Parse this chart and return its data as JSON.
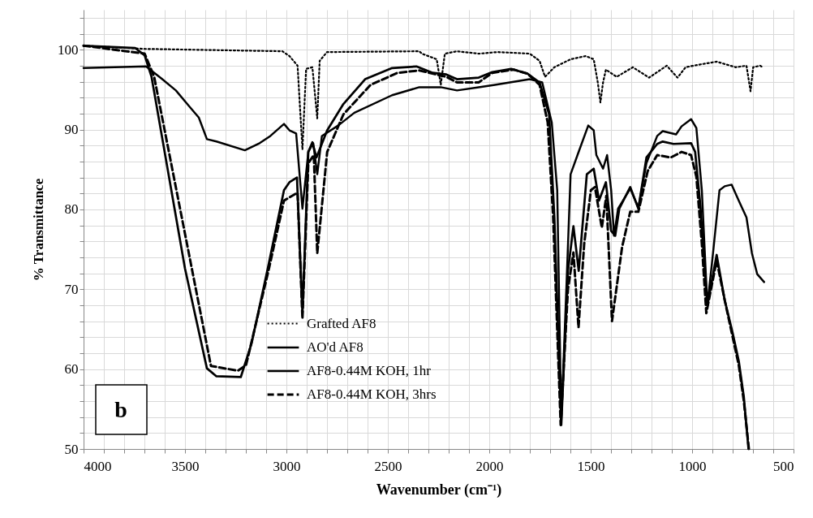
{
  "chart_data": {
    "type": "line",
    "xlabel": "Wavenumber (cm⁻¹)",
    "ylabel": "% Transmittance",
    "annotations": [
      "b"
    ],
    "xlim": [
      4000,
      500
    ],
    "ylim": [
      50,
      105
    ],
    "xticks": [
      4000,
      {
        "value": 3900,
        "label": null
      },
      {
        "value": 3800,
        "label": null
      },
      {
        "value": 3700,
        "label": null
      },
      {
        "value": 3600,
        "label": null
      },
      3500,
      {
        "value": 3400,
        "label": null
      },
      {
        "value": 3300,
        "label": null
      },
      {
        "value": 3200,
        "label": null
      },
      {
        "value": 3100,
        "label": null
      },
      3000,
      {
        "value": 2900,
        "label": null
      },
      {
        "value": 2800,
        "label": null
      },
      {
        "value": 2700,
        "label": null
      },
      {
        "value": 2600,
        "label": null
      },
      2500,
      {
        "value": 2400,
        "label": null
      },
      {
        "value": 2300,
        "label": null
      },
      {
        "value": 2200,
        "label": null
      },
      {
        "value": 2100,
        "label": null
      },
      2000,
      {
        "value": 1900,
        "label": null
      },
      {
        "value": 1800,
        "label": null
      },
      {
        "value": 1700,
        "label": null
      },
      {
        "value": 1600,
        "label": null
      },
      1500,
      {
        "value": 1400,
        "label": null
      },
      {
        "value": 1300,
        "label": null
      },
      {
        "value": 1200,
        "label": null
      },
      {
        "value": 1100,
        "label": null
      },
      1000,
      {
        "value": 900,
        "label": null
      },
      {
        "value": 800,
        "label": null
      },
      {
        "value": 700,
        "label": null
      },
      {
        "value": 600,
        "label": null
      },
      500
    ],
    "yticks": [
      50,
      {
        "value": 52,
        "label": null
      },
      {
        "value": 54,
        "label": null
      },
      {
        "value": 56,
        "label": null
      },
      {
        "value": 58,
        "label": null
      },
      60,
      {
        "value": 62,
        "label": null
      },
      {
        "value": 64,
        "label": null
      },
      {
        "value": 66,
        "label": null
      },
      {
        "value": 68,
        "label": null
      },
      70,
      {
        "value": 72,
        "label": null
      },
      {
        "value": 74,
        "label": null
      },
      {
        "value": 76,
        "label": null
      },
      {
        "value": 78,
        "label": null
      },
      80,
      {
        "value": 82,
        "label": null
      },
      {
        "value": 84,
        "label": null
      },
      {
        "value": 86,
        "label": null
      },
      {
        "value": 88,
        "label": null
      },
      90,
      {
        "value": 92,
        "label": null
      },
      {
        "value": 94,
        "label": null
      },
      {
        "value": 96,
        "label": null
      },
      {
        "value": 98,
        "label": null
      },
      100,
      {
        "value": 102,
        "label": null
      },
      {
        "value": 104,
        "label": null
      }
    ],
    "grid": true,
    "legend": "bottom",
    "marker": "none",
    "series": [
      {
        "name": "Grafted AF8",
        "color": "#000000",
        "line_style": "dotted",
        "x": [
          4000,
          3700,
          3020,
          2985,
          2945,
          2921,
          2903,
          2872,
          2848,
          2836,
          2800,
          2345,
          2332,
          2259,
          2239,
          2219,
          2159,
          2052,
          1959,
          1800,
          1752,
          1725,
          1679,
          1599,
          1525,
          1485,
          1465,
          1452,
          1439,
          1425,
          1372,
          1292,
          1212,
          1125,
          1072,
          1032,
          972,
          879,
          785,
          732,
          712,
          699,
          665,
          652
        ],
        "values": [
          100.5,
          100.1,
          99.8,
          99.2,
          98.0,
          87.5,
          97.6,
          97.8,
          91.4,
          98.6,
          99.7,
          99.8,
          99.5,
          98.8,
          95.6,
          99.5,
          99.8,
          99.5,
          99.7,
          99.5,
          98.6,
          96.6,
          97.8,
          98.8,
          99.2,
          98.8,
          95.9,
          93.4,
          95.9,
          97.5,
          96.6,
          97.8,
          96.5,
          98.0,
          96.5,
          97.8,
          98.1,
          98.5,
          97.8,
          98.0,
          94.8,
          97.8,
          98.0,
          97.8
        ]
      },
      {
        "name": "AO'd AF8",
        "color": "#000000",
        "line_style": "solid",
        "x": [
          4000,
          3692,
          3612,
          3545,
          3479,
          3432,
          3392,
          3345,
          3205,
          3132,
          3079,
          3012,
          2985,
          2952,
          2921,
          2892,
          2868,
          2848,
          2825,
          2745,
          2665,
          2479,
          2345,
          2239,
          2159,
          2052,
          1972,
          1800,
          1739,
          1692,
          1665,
          1645,
          1620,
          1599,
          1565,
          1512,
          1485,
          1472,
          1439,
          1419,
          1399,
          1385,
          1365,
          1305,
          1265,
          1225,
          1172,
          1145,
          1079,
          1052,
          1005,
          979,
          952,
          925,
          899,
          865,
          839,
          805,
          772,
          732,
          705,
          679,
          645
        ],
        "values": [
          97.7,
          97.9,
          96.3,
          94.9,
          92.9,
          91.5,
          88.8,
          88.5,
          87.4,
          88.3,
          89.2,
          90.7,
          89.9,
          89.5,
          80.1,
          87.2,
          88.3,
          84.4,
          89.2,
          90.5,
          92.1,
          94.3,
          95.3,
          95.3,
          94.9,
          95.3,
          95.6,
          96.3,
          95.9,
          90.9,
          82.4,
          53.5,
          70,
          84.4,
          86.8,
          90.5,
          89.9,
          86.8,
          85.1,
          86.8,
          82.4,
          76.7,
          80.1,
          82.6,
          80.2,
          85.8,
          89.2,
          89.8,
          89.4,
          90.4,
          91.3,
          90.2,
          82.4,
          68,
          74.0,
          82.4,
          82.9,
          83.1,
          81.2,
          79.0,
          74.5,
          71.9,
          70.9
        ]
      },
      {
        "name": "AF8-0.44M KOH, 1hr",
        "color": "#000000",
        "line_style": "solid",
        "x": [
          4000,
          3745,
          3699,
          3665,
          3500,
          3392,
          3345,
          3225,
          3172,
          3092,
          3012,
          2985,
          2948,
          2921,
          2892,
          2872,
          2852,
          2799,
          2719,
          2612,
          2479,
          2359,
          2279,
          2212,
          2159,
          2052,
          1985,
          1892,
          1812,
          1752,
          1705,
          1679,
          1645,
          1612,
          1585,
          1559,
          1519,
          1485,
          1459,
          1425,
          1399,
          1379,
          1359,
          1305,
          1265,
          1225,
          1172,
          1145,
          1092,
          1005,
          985,
          959,
          932,
          925,
          879,
          839,
          800,
          770,
          745,
          722
        ],
        "values": [
          100.5,
          100.2,
          99.3,
          96.6,
          72.6,
          60.1,
          59.1,
          59.0,
          63.2,
          72.6,
          82.4,
          83.4,
          84.0,
          67,
          87.2,
          88.4,
          86.5,
          89.9,
          93.2,
          96.3,
          97.7,
          97.9,
          97.1,
          96.9,
          96.3,
          96.5,
          97.2,
          97.6,
          97.0,
          95.9,
          91.9,
          79.0,
          53,
          72.3,
          77.9,
          72.3,
          84.4,
          85.1,
          81.1,
          83.4,
          77.3,
          76.7,
          80.1,
          82.8,
          80.1,
          86.5,
          88.2,
          88.5,
          88.2,
          88.3,
          87.2,
          80.4,
          70.6,
          68,
          74.3,
          68.6,
          64.5,
          61,
          56.5,
          50
        ]
      },
      {
        "name": "AF8-0.44M KOH, 3hrs",
        "color": "#000000",
        "line_style": "dashed",
        "x": [
          4000,
          3699,
          3652,
          3372,
          3239,
          3199,
          3086,
          3012,
          2945,
          2921,
          2892,
          2865,
          2848,
          2799,
          2719,
          2585,
          2452,
          2345,
          2212,
          2159,
          2052,
          1985,
          1879,
          1812,
          1752,
          1712,
          1685,
          1648,
          1612,
          1585,
          1560,
          1532,
          1499,
          1479,
          1445,
          1423,
          1395,
          1345,
          1305,
          1265,
          1219,
          1172,
          1105,
          1052,
          1005,
          979,
          952,
          930,
          879,
          839,
          800,
          770,
          745,
          720
        ],
        "values": [
          100.5,
          99.5,
          96.6,
          60.4,
          59.8,
          60.5,
          72.6,
          81.1,
          82.1,
          66.3,
          85.8,
          86.8,
          74.5,
          87.2,
          91.9,
          95.6,
          97.1,
          97.4,
          96.6,
          95.9,
          95.9,
          97.1,
          97.5,
          97.0,
          95.6,
          90.9,
          79.0,
          53,
          70,
          74.6,
          65.2,
          75.7,
          82.4,
          82.8,
          77.7,
          81.7,
          66,
          75.3,
          79.7,
          79.7,
          84.8,
          86.8,
          86.5,
          87.2,
          86.8,
          84.1,
          75.7,
          67,
          73.6,
          68.6,
          64,
          60.5,
          56,
          50
        ]
      }
    ]
  }
}
